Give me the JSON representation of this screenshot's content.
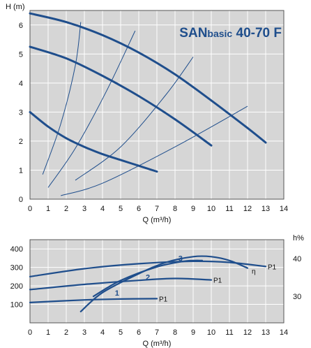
{
  "colors": {
    "panel_bg": "#d6d6d6",
    "grid": "#ffffff",
    "curve": "#1f4e8c",
    "title": "#1f4e8c"
  },
  "chart_data": [
    {
      "type": "line",
      "title": "SANbasic 40-70 F",
      "title_parts": {
        "brand": "SAN",
        "model_small": "basic",
        "model_big": " 40-70 F"
      },
      "xlabel": "Q (m³/h)",
      "ylabel": "H (m)",
      "xlim": [
        0,
        14
      ],
      "ylim": [
        0,
        6.5
      ],
      "x_ticks": [
        0,
        1,
        2,
        3,
        4,
        5,
        6,
        7,
        8,
        9,
        10,
        11,
        12,
        13,
        14
      ],
      "y_ticks": [
        0,
        1,
        2,
        3,
        4,
        5,
        6
      ],
      "grid": true,
      "series": [
        {
          "points": [
            [
              0,
              6.4
            ],
            [
              2,
              6.1
            ],
            [
              4,
              5.65
            ],
            [
              6,
              5.05
            ],
            [
              8,
              4.3
            ],
            [
              10,
              3.4
            ],
            [
              12,
              2.45
            ],
            [
              13,
              1.95
            ]
          ]
        },
        {
          "points": [
            [
              0,
              5.25
            ],
            [
              2,
              4.85
            ],
            [
              4,
              4.25
            ],
            [
              6,
              3.55
            ],
            [
              8,
              2.75
            ],
            [
              10,
              1.85
            ]
          ]
        },
        {
          "points": [
            [
              0,
              3.0
            ],
            [
              1,
              2.5
            ],
            [
              2,
              2.1
            ],
            [
              3,
              1.8
            ],
            [
              4,
              1.55
            ],
            [
              5,
              1.35
            ],
            [
              6,
              1.15
            ],
            [
              7,
              0.95
            ]
          ]
        }
      ],
      "system_curves": [
        {
          "points": [
            [
              0.7,
              0.85
            ],
            [
              1.7,
              2.6
            ],
            [
              2.5,
              4.6
            ],
            [
              2.8,
              6.1
            ]
          ]
        },
        {
          "points": [
            [
              1.0,
              0.4
            ],
            [
              2.5,
              1.75
            ],
            [
              4.2,
              3.7
            ],
            [
              5.8,
              5.8
            ]
          ]
        },
        {
          "points": [
            [
              2.5,
              0.65
            ],
            [
              5.0,
              1.8
            ],
            [
              7.5,
              3.6
            ],
            [
              9.0,
              4.9
            ]
          ]
        },
        {
          "points": [
            [
              1.7,
              0.12
            ],
            [
              4.0,
              0.55
            ],
            [
              8.0,
              1.8
            ],
            [
              12.0,
              3.2
            ]
          ]
        }
      ]
    },
    {
      "type": "line",
      "title": "",
      "xlabel": "Q (m³/h)",
      "ylabel_left": "",
      "ylabel_right": "h%",
      "xlim": [
        0,
        14
      ],
      "ylim": [
        0,
        450
      ],
      "ylim_right": [
        23,
        45
      ],
      "x_ticks": [
        0,
        1,
        2,
        3,
        4,
        5,
        6,
        7,
        8,
        9,
        10,
        11,
        12,
        13,
        14
      ],
      "y_ticks": [
        100,
        200,
        300,
        400
      ],
      "y_ticks_right": [
        30,
        40
      ],
      "grid": true,
      "series": [
        {
          "name": "1",
          "tag": "P1",
          "label_at": [
            4.8,
            147
          ],
          "points": [
            [
              0,
              110
            ],
            [
              3,
              124
            ],
            [
              5,
              129
            ],
            [
              7,
              131
            ]
          ]
        },
        {
          "name": "2",
          "tag": "P1",
          "label_at": [
            6.5,
            232
          ],
          "points": [
            [
              0,
              180
            ],
            [
              3,
              208
            ],
            [
              6,
              230
            ],
            [
              8,
              240
            ],
            [
              10,
              232
            ]
          ]
        },
        {
          "name": "3",
          "tag": "P1",
          "label_at": [
            8.3,
            335
          ],
          "points": [
            [
              0,
              250
            ],
            [
              3,
              293
            ],
            [
              6,
              320
            ],
            [
              9,
              333
            ],
            [
              11,
              327
            ],
            [
              13,
              305
            ]
          ]
        }
      ],
      "efficiency_curves": [
        {
          "name": "η",
          "points": [
            [
              2.8,
              26
            ],
            [
              4,
              31
            ],
            [
              6,
              36
            ],
            [
              7.5,
              39
            ],
            [
              9,
              40.5
            ],
            [
              10,
              40.5
            ],
            [
              11,
              39.5
            ],
            [
              12,
              37.5
            ]
          ]
        },
        {
          "points": [
            [
              3.5,
              30
            ],
            [
              5,
              34.2
            ],
            [
              7,
              37.8
            ],
            [
              8.5,
              39.3
            ],
            [
              9.5,
              39.5
            ]
          ]
        }
      ]
    }
  ]
}
